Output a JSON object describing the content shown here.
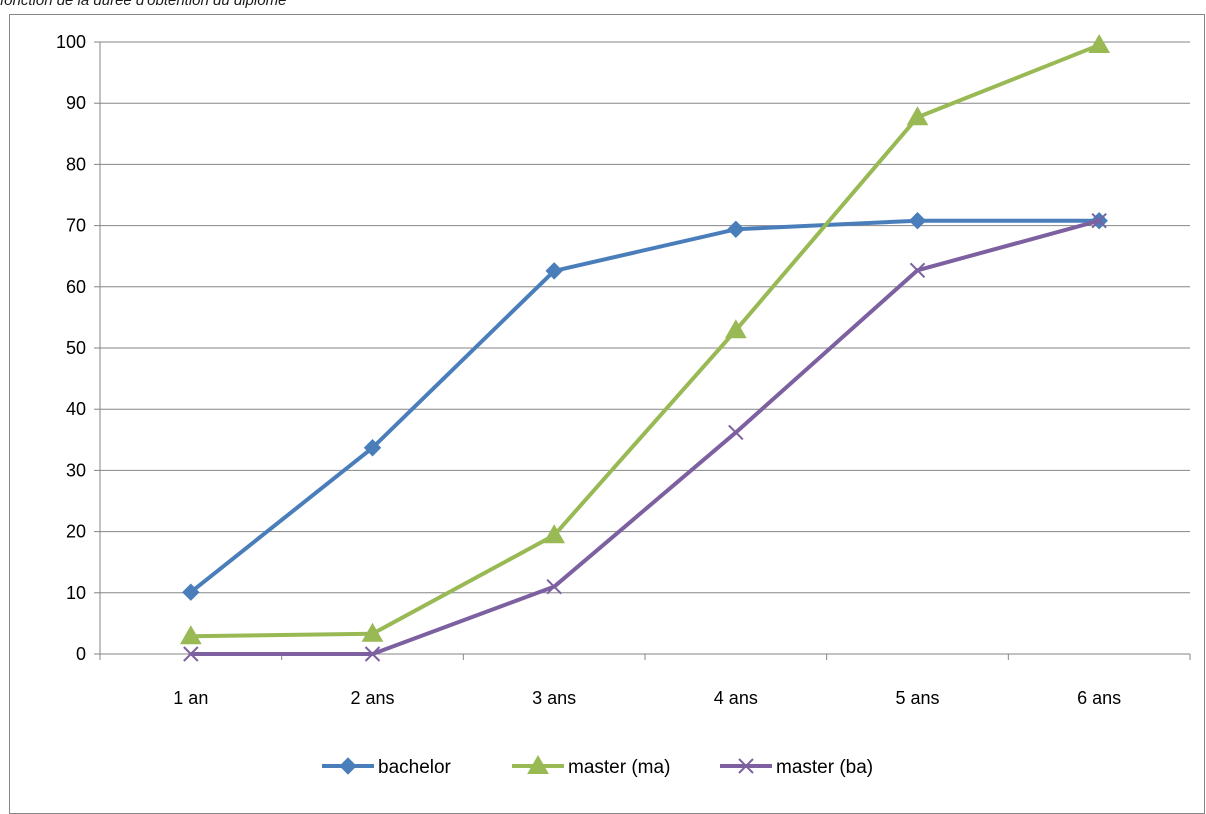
{
  "caption": "fonction de la durée d'obtention du diplôme",
  "chart_data": {
    "type": "line",
    "title": "",
    "xlabel": "",
    "ylabel": "",
    "categories": [
      "1 an",
      "2 ans",
      "3 ans",
      "4 ans",
      "5 ans",
      "6 ans"
    ],
    "ylim": [
      0,
      100
    ],
    "yticks": [
      0,
      10,
      20,
      30,
      40,
      50,
      60,
      70,
      80,
      90,
      100
    ],
    "grid": "horizontal",
    "legend_position": "bottom",
    "series": [
      {
        "name": "bachelor",
        "color": "#4a7ebb",
        "marker": "diamond",
        "values": [
          10.1,
          33.7,
          62.6,
          69.4,
          70.8,
          70.8
        ]
      },
      {
        "name": "master (ma)",
        "color": "#98b954",
        "marker": "triangle",
        "values": [
          2.9,
          3.3,
          19.4,
          52.9,
          87.7,
          99.5
        ]
      },
      {
        "name": "master (ba)",
        "color": "#7d60a0",
        "marker": "x",
        "values": [
          0.0,
          0.0,
          11.0,
          36.2,
          62.7,
          70.8
        ]
      }
    ]
  }
}
